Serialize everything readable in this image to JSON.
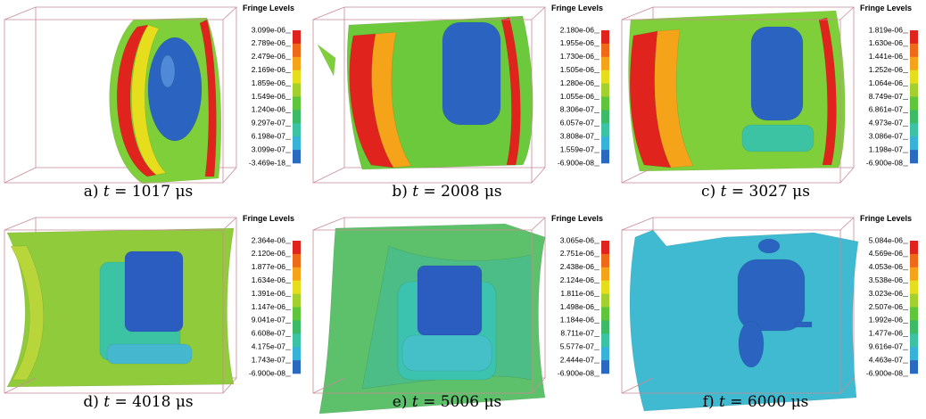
{
  "panels": [
    {
      "legend_title": "Fringe Levels",
      "levels": [
        "3.099e-06",
        "2.789e-06",
        "2.479e-06",
        "2.169e-06",
        "1.859e-06",
        "1.549e-06",
        "1.240e-06",
        "9.297e-07",
        "6.198e-07",
        "3.099e-07",
        "-3.469e-18"
      ],
      "caption": {
        "label": "a)",
        "variable": "t",
        "rest": "= 1017 μs"
      }
    },
    {
      "legend_title": "Fringe Levels",
      "levels": [
        "2.180e-06",
        "1.955e-06",
        "1.730e-06",
        "1.505e-06",
        "1.280e-06",
        "1.055e-06",
        "8.306e-07",
        "6.057e-07",
        "3.808e-07",
        "1.559e-07",
        "-6.900e-08"
      ],
      "caption": {
        "label": "b)",
        "variable": "t",
        "rest": "= 2008 μs"
      }
    },
    {
      "legend_title": "Fringe Levels",
      "levels": [
        "1.819e-06",
        "1.630e-06",
        "1.441e-06",
        "1.252e-06",
        "1.064e-06",
        "8.749e-07",
        "6.861e-07",
        "4.973e-07",
        "3.086e-07",
        "1.198e-07",
        "-6.900e-08"
      ],
      "caption": {
        "label": "c)",
        "variable": "t",
        "rest": "= 3027 μs"
      }
    },
    {
      "legend_title": "Fringe Levels",
      "levels": [
        "2.364e-06",
        "2.120e-06",
        "1.877e-06",
        "1.634e-06",
        "1.391e-06",
        "1.147e-06",
        "9.041e-07",
        "6.608e-07",
        "4.175e-07",
        "1.743e-07",
        "-6.900e-08"
      ],
      "caption": {
        "label": "d)",
        "variable": "t",
        "rest": "= 4018 μs"
      }
    },
    {
      "legend_title": "Fringe Levels",
      "levels": [
        "3.065e-06",
        "2.751e-06",
        "2.438e-06",
        "2.124e-06",
        "1.811e-06",
        "1.498e-06",
        "1.184e-06",
        "8.711e-07",
        "5.577e-07",
        "2.444e-07",
        "-6.900e-08"
      ],
      "caption": {
        "label": "e)",
        "variable": "t",
        "rest": "= 5006 μs"
      }
    },
    {
      "legend_title": "Fringe Levels",
      "levels": [
        "5.084e-06",
        "4.569e-06",
        "4.053e-06",
        "3.538e-06",
        "3.023e-06",
        "2.507e-06",
        "1.992e-06",
        "1.477e-06",
        "9.616e-07",
        "4.463e-07",
        "-6.900e-08"
      ],
      "caption": {
        "label": "f)",
        "variable": "t",
        "rest": "= 6000 μs"
      }
    }
  ]
}
